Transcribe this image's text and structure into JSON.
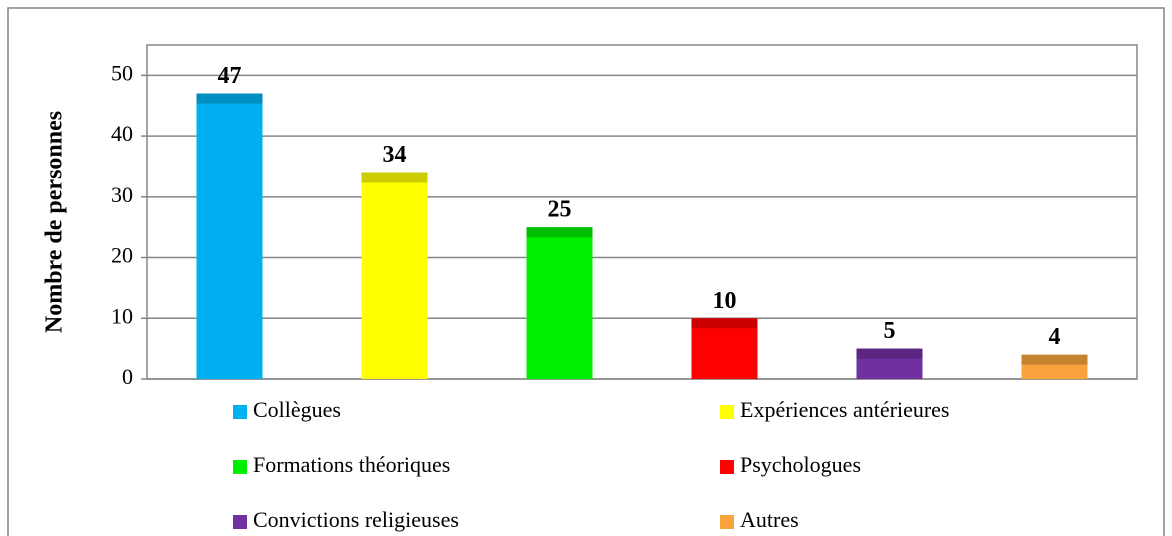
{
  "chart_data": {
    "type": "bar",
    "ylabel": "Nombre de personnes",
    "categories": [
      "Collègues",
      "Expériences antérieures",
      "Formations théoriques",
      "Psychologues",
      "Convictions religieuses",
      "Autres"
    ],
    "values": [
      47,
      34,
      25,
      10,
      5,
      4
    ],
    "colors": [
      "#00b0f0",
      "#ffff00",
      "#00ee00",
      "#ff0000",
      "#7030a0",
      "#f9a33c"
    ],
    "ylim": [
      0,
      55
    ],
    "yticks": [
      0,
      10,
      20,
      30,
      40,
      50
    ],
    "grid": true,
    "legend": "bottom"
  }
}
